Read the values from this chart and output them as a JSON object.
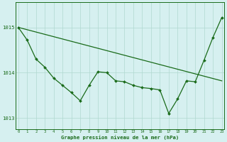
{
  "xlabel": "Graphe pression niveau de la mer (hPa)",
  "background_color": "#d6f0f0",
  "grid_color": "#b0d8d0",
  "line_color": "#1a6b1a",
  "hours": [
    0,
    1,
    2,
    3,
    4,
    5,
    6,
    7,
    8,
    9,
    10,
    11,
    12,
    13,
    14,
    15,
    16,
    17,
    18,
    19,
    20,
    21,
    22,
    23
  ],
  "pressure": [
    1015.0,
    1014.72,
    1014.3,
    1014.12,
    1013.88,
    1013.72,
    1013.56,
    1013.38,
    1013.72,
    1014.02,
    1014.0,
    1013.82,
    1013.8,
    1013.72,
    1013.67,
    1013.65,
    1013.62,
    1013.1,
    1013.42,
    1013.82,
    1013.8,
    1014.28,
    1014.78,
    1015.22
  ],
  "trend_x": [
    0,
    23
  ],
  "trend_y": [
    1015.0,
    1013.82
  ],
  "ylim": [
    1012.75,
    1015.55
  ],
  "yticks": [
    1013,
    1014,
    1015
  ],
  "xticks": [
    0,
    1,
    2,
    3,
    4,
    5,
    6,
    7,
    8,
    9,
    10,
    11,
    12,
    13,
    14,
    15,
    16,
    17,
    18,
    19,
    20,
    21,
    22,
    23
  ],
  "marker_size": 2.0,
  "line_width": 0.9
}
